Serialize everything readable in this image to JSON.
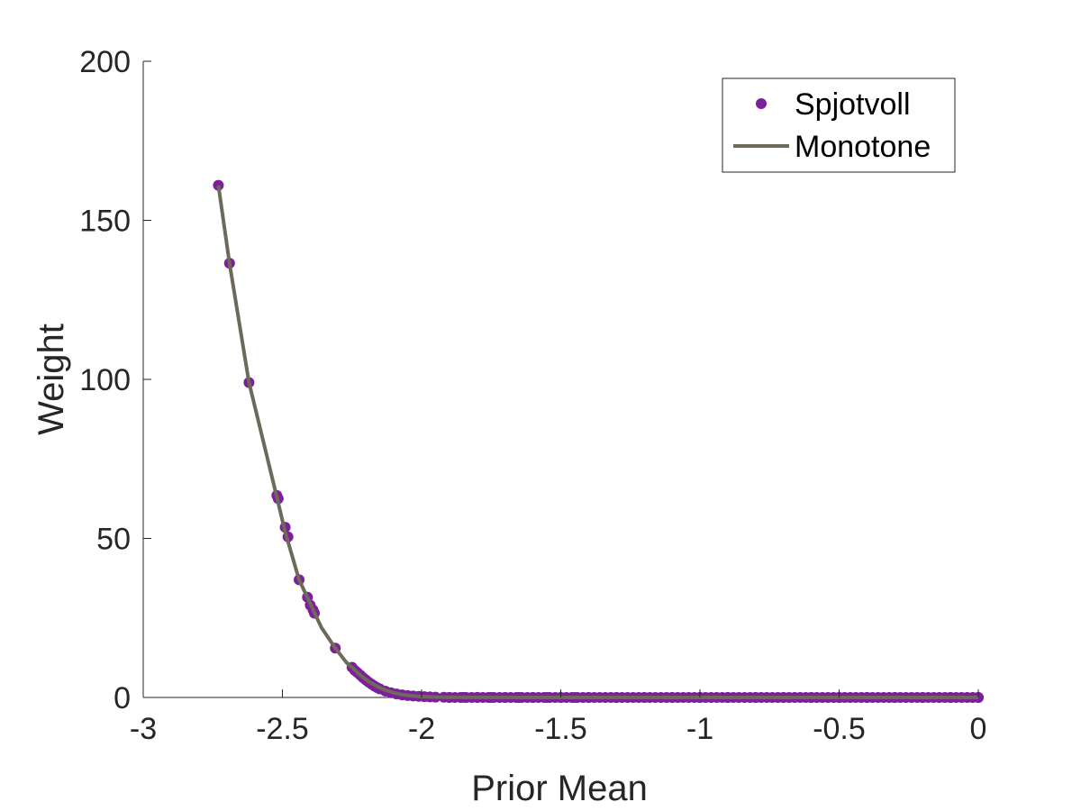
{
  "chart_data": {
    "type": "scatter",
    "xlabel": "Prior Mean",
    "ylabel": "Weight",
    "xlim": [
      -3,
      0
    ],
    "ylim": [
      0,
      200
    ],
    "xticks": [
      -3,
      -2.5,
      -2,
      -1.5,
      -1,
      -0.5,
      0
    ],
    "xtick_labels": [
      "-3",
      "-2.5",
      "-2",
      "-1.5",
      "-1",
      "-0.5",
      "0"
    ],
    "yticks": [
      0,
      50,
      100,
      150,
      200
    ],
    "ytick_labels": [
      "0",
      "50",
      "100",
      "150",
      "200"
    ],
    "grid": false,
    "legend_position": "top-right",
    "series": [
      {
        "name": "Spjotvoll",
        "kind": "markers",
        "color": "#7e1e9c",
        "x": [
          -2.73,
          -2.69,
          -2.62,
          -2.52,
          -2.515,
          -2.49,
          -2.48,
          -2.44,
          -2.41,
          -2.4,
          -2.39,
          -2.385,
          -2.31,
          -2.25,
          -2.24,
          -2.23,
          -2.22,
          -2.21,
          -2.2,
          -2.19,
          -2.18,
          -2.17,
          -2.16,
          -2.15,
          -2.13,
          -2.11,
          -2.09,
          -2.07,
          -2.05,
          -2.03,
          -2.01,
          -1.99,
          -1.97,
          -1.95,
          -1.92,
          -1.9,
          -1.85,
          -1.8,
          -1.75,
          -1.7,
          -1.65,
          -1.6,
          -1.55,
          -1.5,
          -1.45,
          -1.4,
          -1.3,
          -1.2,
          -1.1,
          -1.0,
          -0.9,
          -0.8,
          -0.7,
          -0.6,
          -0.5,
          -0.4,
          -0.3,
          -0.2,
          -0.1,
          0
        ],
        "y": [
          161,
          136.5,
          99,
          63.5,
          62.5,
          53.5,
          50.5,
          37,
          31.5,
          29,
          27.5,
          26.5,
          15.5,
          9.5,
          8.5,
          7.8,
          7.0,
          6.2,
          5.5,
          4.8,
          4.2,
          3.6,
          3.1,
          2.7,
          2.0,
          1.5,
          1.1,
          0.8,
          0.6,
          0.45,
          0.35,
          0.25,
          0.18,
          0.12,
          0.08,
          0.05,
          0.03,
          0.02,
          0.01,
          0.01,
          0.005,
          0,
          0,
          0,
          0,
          0,
          0,
          0,
          0,
          0,
          0,
          0,
          0,
          0,
          0,
          0,
          0,
          0,
          0,
          0
        ]
      },
      {
        "name": "Monotone",
        "kind": "line",
        "color": "#6e6a5a",
        "x": [
          -2.73,
          -2.69,
          -2.62,
          -2.52,
          -2.49,
          -2.44,
          -2.4,
          -2.36,
          -2.31,
          -2.27,
          -2.25,
          -2.22,
          -2.19,
          -2.16,
          -2.13,
          -2.1,
          -2.07,
          -2.04,
          -2.01,
          -1.98,
          -1.95,
          -1.9,
          -1.8,
          -1.6,
          -1.2,
          -0.8,
          -0.4,
          0
        ],
        "y": [
          161,
          136.5,
          99,
          63,
          52,
          37,
          29.5,
          22,
          15.5,
          11,
          9.5,
          7.0,
          5.0,
          3.5,
          2.3,
          1.5,
          0.9,
          0.55,
          0.35,
          0.22,
          0.12,
          0.05,
          0.02,
          0,
          0,
          0,
          0,
          0
        ]
      }
    ]
  }
}
